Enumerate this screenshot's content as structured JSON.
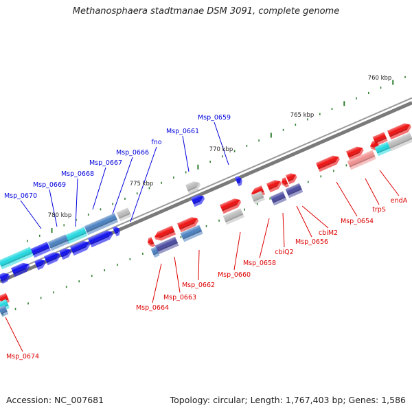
{
  "title": "Methanosphaera stadtmanae DSM 3091, complete genome",
  "accession_text": "Accession: NC_007681",
  "info_text": "Topology: circular; Length: 1,767,403 bp; Genes: 1,586",
  "colors": {
    "forward_label": "#0000dd",
    "reverse_label": "#dd0000",
    "backbone": "#7a7a7a",
    "tick": "#2e7d2e",
    "forward_gene": "#1010ee",
    "reverse_gene": "#ee1111",
    "cyan_feature": "#22d8e0",
    "steel_feature": "#4a80c0",
    "purple_feature": "#4a4aa0",
    "grey_feature": "#bbbbbb",
    "pink_feature": "#f09090"
  },
  "scale_labels": [
    "760 kbp",
    "765 kbp",
    "770 kbp",
    "775 kbp",
    "780 kbp"
  ],
  "forward_labels": [
    "Msp_0659",
    "Msp_0661",
    "fno",
    "Msp_0666",
    "Msp_0667",
    "Msp_0668",
    "Msp_0669",
    "Msp_0670"
  ],
  "reverse_labels": [
    "endA",
    "trpS",
    "Msp_0654",
    "cbiM2",
    "Msp_0656",
    "cbiQ2",
    "Msp_0658",
    "Msp_0660",
    "Msp_0662",
    "Msp_0663",
    "Msp_0664",
    "Msp_0674"
  ]
}
